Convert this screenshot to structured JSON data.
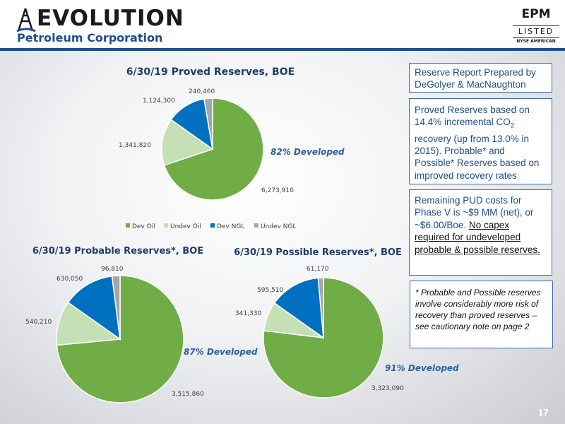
{
  "header": {
    "logo_main": "EVOLUTION",
    "logo_sub": "Petroleum Corporation",
    "ticker_symbol": "EPM",
    "ticker_listed": "LISTED",
    "ticker_exchange": "NYSE AMERICAN"
  },
  "colors": {
    "dev_oil": "#70ad47",
    "undev_oil": "#c5e0b4",
    "dev_ngl": "#0070c0",
    "undev_ngl": "#a6a6a6",
    "accent": "#1f4e8c"
  },
  "chart_data": [
    {
      "type": "pie",
      "title": "6/30/19 Proved Reserves, BOE",
      "categories": [
        "Dev Oil",
        "Undev Oil",
        "Dev NGL",
        "Undev NGL"
      ],
      "values": [
        6273910,
        1341820,
        1124300,
        240460
      ],
      "data_labels": [
        "6,273,910",
        "1,341,820",
        "1,124,300",
        "240,460"
      ],
      "annotation": "82% Developed",
      "legend": "bottom"
    },
    {
      "type": "pie",
      "title": "6/30/19 Probable Reserves*, BOE",
      "categories": [
        "Dev Oil",
        "Undev Oil",
        "Dev NGL",
        "Undev NGL"
      ],
      "values": [
        3515860,
        540210,
        630050,
        96810
      ],
      "data_labels": [
        "3,515,860",
        "540,210",
        "630,050",
        "96,810"
      ],
      "annotation": "87% Developed"
    },
    {
      "type": "pie",
      "title": "6/30/19 Possible Reserves*, BOE",
      "categories": [
        "Dev Oil",
        "Undev Oil",
        "Dev NGL",
        "Undev NGL"
      ],
      "values": [
        3323090,
        341330,
        595510,
        61170
      ],
      "data_labels": [
        "3,323,090",
        "341,330",
        "595,510",
        "61,170"
      ],
      "annotation": "91% Developed"
    }
  ],
  "sidebar": {
    "box1": "Reserve Report Prepared by DeGolyer & MacNaughton",
    "box2_part1": "Proved Reserves based on 14.4% incremental CO",
    "box2_sub": "2",
    "box2_part2": " recovery (up from 13.0% in 2015). Probable* and Possible* Reserves based on improved recovery rates",
    "box3_plain": "Remaining PUD costs for Phase V is ~$9 MM (net), or ~$6.00/Boe.",
    "box3_underlined": "No capex required for undeveloped probable & possible reserves.",
    "box4": "* Probable and Possible reserves involve considerably more risk of recovery than proved reserves – see cautionary note on page 2"
  },
  "page_number": "17"
}
